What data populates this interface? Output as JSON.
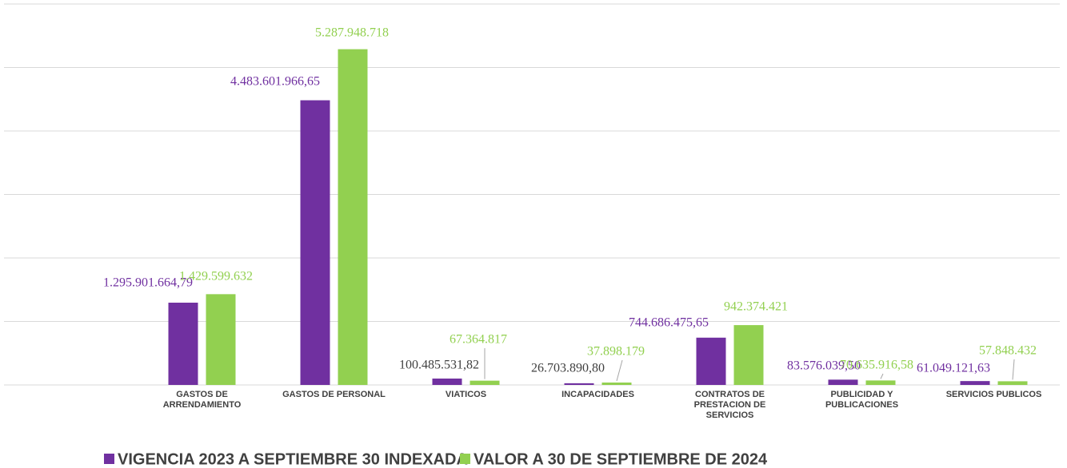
{
  "chart_data": {
    "type": "bar",
    "categories": [
      null,
      "GASTOS DE ARRENDAMIENTO",
      "GASTOS DE PERSONAL",
      "VIATICOS",
      "INCAPACIDADES",
      "CONTRATOS DE PRESTACION DE SERVICIOS",
      "PUBLICIDAD Y PUBLICACIONES",
      "SERVICIOS PUBLICOS"
    ],
    "series": [
      {
        "name": "VIGENCIA 2023 A SEPTIEMBRE 30 INDEXADA",
        "color": "#7030a0",
        "values": [
          null,
          1295901664.79,
          4483601966.65,
          100485531.82,
          26703890.8,
          744686475.65,
          83576039.5,
          61049121.63
        ],
        "value_labels": [
          null,
          "1.295.901.664,79",
          "4.483.601.966,65",
          "100.485.531,82",
          "26.703.890,80",
          "744.686.475,65",
          "83.576.039,50",
          "61.049.121,63"
        ]
      },
      {
        "name": "VALOR A 30 DE SEPTIEMBRE DE 2024",
        "color": "#92d050",
        "values": [
          null,
          1429599632,
          5287948718,
          67364817,
          37898179,
          942374421,
          70635916.58,
          57848432
        ],
        "value_labels": [
          null,
          "1.429.599.632",
          "5.287.948.718",
          "67.364.817",
          "37.898.179",
          "942.374.421",
          "70.635.916,58",
          "57.848.432"
        ]
      }
    ],
    "ylim": [
      0,
      6000000000
    ],
    "yticks": [
      0,
      1000000000,
      2000000000,
      3000000000,
      4000000000,
      5000000000,
      6000000000
    ],
    "grid": true,
    "legend": "bottom"
  }
}
